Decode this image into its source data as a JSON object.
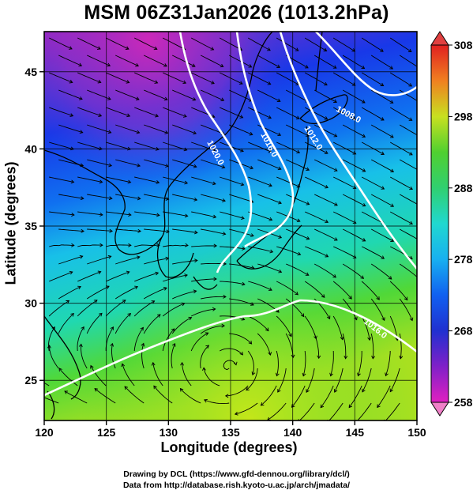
{
  "title": "MSM 06Z31Jan2026 (1013.2hPa)",
  "xlabel": "Longitude (degrees)",
  "ylabel": "Latitude  (degrees)",
  "x_ticks": [
    "120",
    "125",
    "130",
    "135",
    "140",
    "145",
    "150"
  ],
  "x_tick_values": [
    120,
    125,
    130,
    135,
    140,
    145,
    150
  ],
  "y_ticks": [
    "25",
    "30",
    "35",
    "40",
    "45"
  ],
  "y_tick_values": [
    25,
    30,
    35,
    40,
    45
  ],
  "lon_range": [
    120,
    150
  ],
  "lat_range": [
    22.4,
    47.6
  ],
  "colorbar": {
    "labels": [
      "308",
      "298",
      "288",
      "278",
      "268",
      "258"
    ],
    "values": [
      308,
      298,
      288,
      278,
      268,
      258
    ],
    "range": [
      258,
      308
    ]
  },
  "contour_labels": [
    "1020.0",
    "1016.0",
    "1012.0",
    "1008.0",
    "1016.0"
  ],
  "credits": {
    "line1": "Drawing by DCL (https://www.gfd-dennou.org/library/dcl/)",
    "line2": "Data from http://database.rish.kyoto-u.ac.jp/arch/jmadata/"
  },
  "colors": {
    "cold": "#c020b0",
    "cool": "#2040e0",
    "mid": "#20c8e0",
    "warm": "#40d040",
    "hot": "#c8e020"
  }
}
